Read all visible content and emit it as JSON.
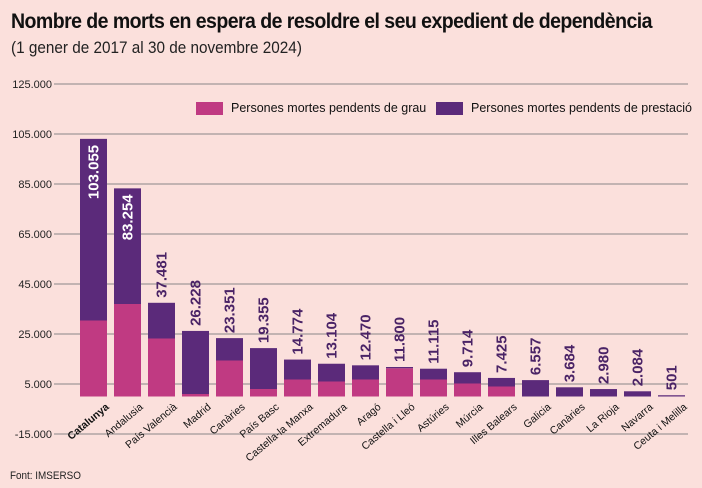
{
  "title": "Nombre de morts en espera de resoldre el seu expedient de dependència",
  "subtitle": "(1 gener de 2017 al 30 de novembre 2024)",
  "source": "Font: IMSERSO",
  "colors": {
    "grau": "#c03a82",
    "prestacio": "#5b2a7a",
    "label": "#4a2366",
    "grid": "#a09898",
    "background": "#fbe0dc"
  },
  "chart_data": {
    "type": "bar",
    "stacked": true,
    "title": "Nombre de morts en espera de resoldre el seu expedient de dependència",
    "subtitle": "(1 gener de 2017 al 30 de novembre 2024)",
    "xlabel": "",
    "ylabel": "",
    "ylim": [
      -15000,
      125000
    ],
    "yticks": [
      125000,
      105000,
      85000,
      65000,
      45000,
      25000,
      5000,
      -15000
    ],
    "ytick_labels": [
      "125.000",
      "105.000",
      "85.000",
      "65.000",
      "45.000",
      "25.000",
      "5.000",
      "-15.000"
    ],
    "grid": true,
    "legend_position": "top-right",
    "categories": [
      "Catalunya",
      "Andalusia",
      "País Valencià",
      "Madrid",
      "Canàries",
      "País Basc",
      "Castella-la Manxa",
      "Extremadura",
      "Aragó",
      "Castella i Lleó",
      "Astúries",
      "Múrcia",
      "Illes Balears",
      "Galicia",
      "Canàries",
      "La Rioja",
      "Navarra",
      "Ceuta i Melilla"
    ],
    "highlight_category": "Catalunya",
    "totals": [
      103055,
      83254,
      37481,
      26228,
      23351,
      19355,
      14774,
      13104,
      12470,
      11800,
      11115,
      9714,
      7425,
      6557,
      3684,
      2980,
      2084,
      501
    ],
    "total_labels": [
      "103.055",
      "83.254",
      "37.481",
      "26.228",
      "23.351",
      "19.355",
      "14.774",
      "13.104",
      "12.470",
      "11.800",
      "11.115",
      "9.714",
      "7.425",
      "6.557",
      "3.684",
      "2.980",
      "2.084",
      "501"
    ],
    "series": [
      {
        "name": "Persones mortes pendents de grau",
        "key": "grau",
        "values": [
          30400,
          37000,
          23200,
          1000,
          14400,
          3000,
          6800,
          6000,
          6800,
          11300,
          6800,
          5200,
          4000,
          0,
          0,
          0,
          0,
          0
        ]
      },
      {
        "name": "Persones mortes pendents de prestació",
        "key": "prestacio",
        "values": [
          72655,
          46254,
          14281,
          25228,
          8951,
          16355,
          7974,
          7104,
          5670,
          500,
          4315,
          4514,
          3425,
          6557,
          3684,
          2980,
          2084,
          501
        ]
      }
    ]
  }
}
